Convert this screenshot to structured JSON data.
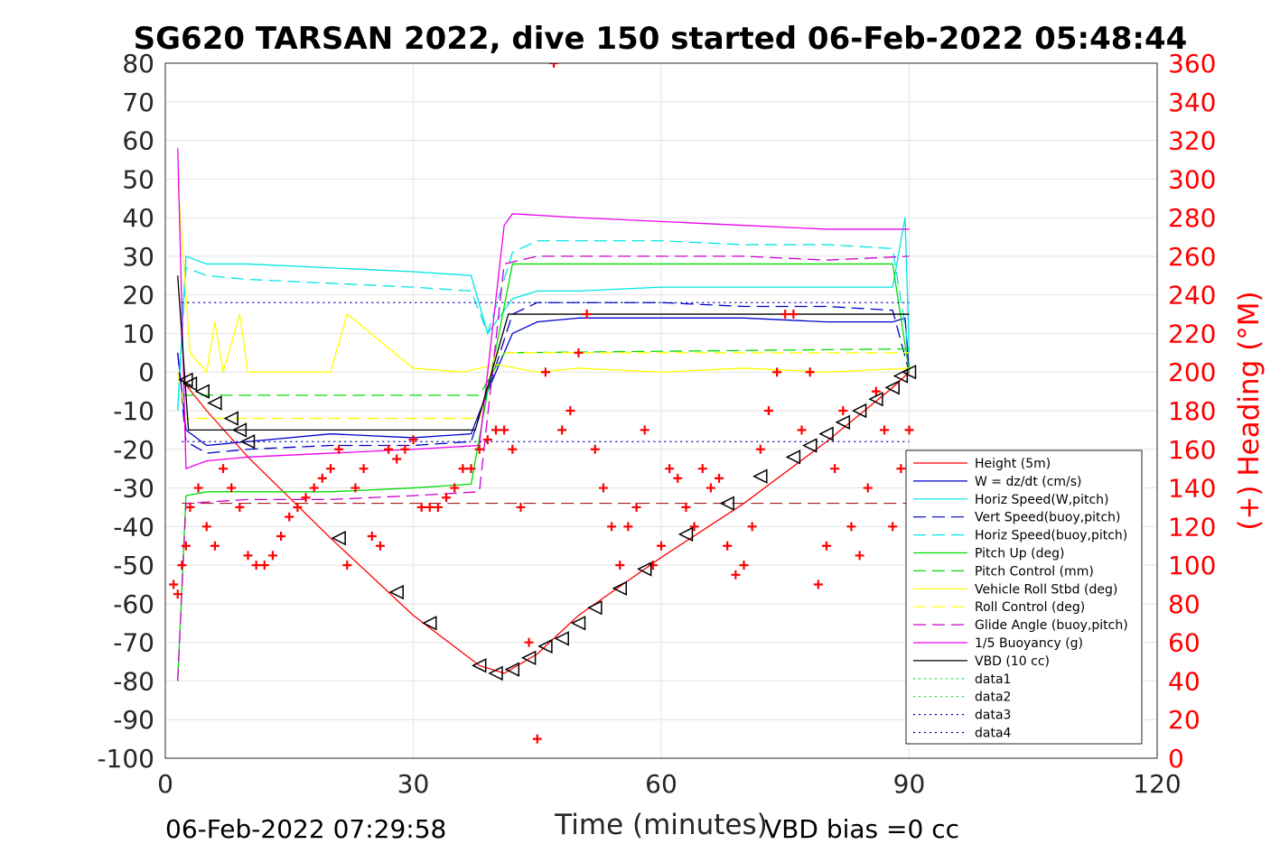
{
  "chart_data": {
    "type": "line",
    "title": "SG620 TARSAN 2022, dive 150 started 06-Feb-2022 05:48:44",
    "xlabel": "Time (minutes)",
    "ylabel_right": "(+) Heading (°M)",
    "xlim": [
      0,
      120
    ],
    "ylim": [
      -100,
      80
    ],
    "ylim_right": [
      0,
      360
    ],
    "x_ticks": [
      "0",
      "30",
      "60",
      "90",
      "120"
    ],
    "y_ticks": [
      "80",
      "70",
      "60",
      "50",
      "40",
      "30",
      "20",
      "10",
      "0",
      "-10",
      "-20",
      "-30",
      "-40",
      "-50",
      "-60",
      "-70",
      "-80",
      "-90",
      "-100"
    ],
    "y_ticks_right": [
      "360",
      "340",
      "320",
      "300",
      "280",
      "260",
      "240",
      "220",
      "200",
      "180",
      "160",
      "140",
      "120",
      "100",
      "80",
      "60",
      "40",
      "20",
      "0"
    ],
    "grid": true,
    "legend_position": "bottom-right",
    "footer_left": "06-Feb-2022 07:29:58",
    "footer_right": "VBD bias =0 cc",
    "series": [
      {
        "name": "Height (5m)",
        "color": "#ff0000",
        "style": "solid",
        "x": [
          2,
          5,
          10,
          20,
          30,
          38,
          41,
          45,
          50,
          60,
          70,
          80,
          88,
          90
        ],
        "y": [
          -2,
          -10,
          -22,
          -43,
          -63,
          -76,
          -78,
          -73,
          -63,
          -48,
          -34,
          -18,
          -4,
          0
        ]
      },
      {
        "name": "W = dz/dt (cm/s)",
        "color": "#0000cc",
        "style": "solid",
        "x": [
          1.5,
          2.5,
          5,
          10,
          20,
          30,
          37,
          39,
          42,
          45,
          50,
          60,
          70,
          80,
          88,
          89.5,
          90
        ],
        "y": [
          5,
          -15,
          -19,
          -18,
          -16,
          -17,
          -16,
          -5,
          10,
          13,
          14,
          14,
          14,
          13,
          13,
          14,
          0
        ]
      },
      {
        "name": "Horiz Speed(W,pitch)",
        "color": "#00e5e5",
        "style": "solid",
        "x": [
          1.5,
          2.5,
          5,
          10,
          20,
          30,
          37,
          39,
          42,
          45,
          50,
          60,
          70,
          80,
          88,
          89.5,
          90
        ],
        "y": [
          -10,
          30,
          28,
          28,
          27,
          26,
          25,
          10,
          19,
          21,
          21,
          22,
          22,
          22,
          22,
          40,
          5
        ]
      },
      {
        "name": "Vert Speed(buoy,pitch)",
        "color": "#0000cc",
        "style": "dashed",
        "x": [
          1.5,
          2.5,
          5,
          10,
          20,
          30,
          37,
          39,
          42,
          45,
          50,
          60,
          70,
          80,
          88,
          90
        ],
        "y": [
          5,
          -18,
          -21,
          -20,
          -19,
          -19,
          -18,
          -5,
          15,
          18,
          18,
          18,
          17,
          17,
          16,
          0
        ]
      },
      {
        "name": "Horiz Speed(buoy,pitch)",
        "color": "#00e5e5",
        "style": "dashed",
        "x": [
          1.5,
          2.5,
          5,
          10,
          20,
          30,
          37,
          39,
          42,
          45,
          50,
          60,
          70,
          80,
          88,
          90
        ],
        "y": [
          -10,
          27,
          25,
          24,
          23,
          22,
          21,
          10,
          31,
          34,
          34,
          34,
          33,
          33,
          32,
          5
        ]
      },
      {
        "name": "Pitch Up (deg)",
        "color": "#00dd00",
        "style": "solid",
        "x": [
          1.5,
          2.5,
          5,
          10,
          20,
          30,
          37,
          39,
          42,
          45,
          50,
          60,
          70,
          80,
          88,
          90
        ],
        "y": [
          -80,
          -32,
          -31,
          -31,
          -31,
          -30,
          -29,
          -5,
          28,
          28,
          28,
          28,
          28,
          28,
          28,
          0
        ]
      },
      {
        "name": "Pitch Control (mm)",
        "color": "#00dd00",
        "style": "dashed",
        "x": [
          2,
          38,
          41,
          90
        ],
        "y": [
          -6,
          -6,
          5,
          6
        ]
      },
      {
        "name": "Vehicle Roll Stbd (deg)",
        "color": "#ffff00",
        "style": "solid",
        "x": [
          1.5,
          3,
          5,
          6,
          7,
          9,
          10,
          20,
          22,
          30,
          36,
          40,
          45,
          50,
          60,
          70,
          80,
          90
        ],
        "y": [
          50,
          5,
          0,
          13,
          0,
          15,
          0,
          0,
          15,
          1,
          0,
          2,
          0,
          1,
          0,
          1,
          0,
          1
        ]
      },
      {
        "name": "Roll Control (deg)",
        "color": "#ffff00",
        "style": "dashed",
        "x": [
          1.5,
          2.5,
          10,
          20,
          30,
          38,
          40,
          45,
          50,
          60,
          70,
          80,
          90
        ],
        "y": [
          0,
          -12,
          -12,
          -12,
          -12,
          -12,
          5,
          5,
          5,
          5,
          5,
          5,
          5
        ]
      },
      {
        "name": "Glide Angle (buoy,pitch)",
        "color": "#cc00cc",
        "style": "dashed",
        "x": [
          1.5,
          2.5,
          10,
          20,
          30,
          38,
          41,
          45,
          50,
          60,
          70,
          80,
          90
        ],
        "y": [
          -80,
          -34,
          -33,
          -33,
          -32,
          -31,
          28,
          30,
          30,
          30,
          30,
          29,
          30
        ]
      },
      {
        "name": "1/5 Buoyancy (g)",
        "color": "#ee00ee",
        "style": "solid",
        "x": [
          1.5,
          2.5,
          5,
          10,
          20,
          30,
          38,
          41,
          42,
          50,
          60,
          70,
          80,
          90
        ],
        "y": [
          58,
          -25,
          -23,
          -22,
          -21,
          -20,
          -19,
          38,
          41,
          40,
          39,
          38,
          37,
          37
        ]
      },
      {
        "name": "VBD (10 cc)",
        "color": "#000000",
        "style": "solid",
        "x": [
          1.5,
          2.8,
          37.5,
          41.5,
          90
        ],
        "y": [
          25,
          -15,
          -15,
          15,
          15
        ]
      },
      {
        "name": "data1",
        "color": "#00dd00",
        "style": "dotted",
        "x": [],
        "y": []
      },
      {
        "name": "data2",
        "color": "#00dd00",
        "style": "dotted",
        "x": [],
        "y": []
      },
      {
        "name": "data3",
        "color": "#0000aa",
        "style": "dotted",
        "x": [
          2,
          90
        ],
        "y": [
          18,
          18
        ]
      },
      {
        "name": "data4",
        "color": "#0000aa",
        "style": "dotted",
        "x": [
          2,
          90
        ],
        "y": [
          -18,
          -18
        ]
      }
    ],
    "reference_lines": [
      {
        "color": "#990000",
        "style": "dashed",
        "y": -34,
        "x": [
          2,
          90
        ]
      }
    ],
    "heading": {
      "color": "#ff0000",
      "marker": "+",
      "axis": "right",
      "x": [
        1,
        1.5,
        2,
        2.5,
        3,
        4,
        5,
        6,
        7,
        8,
        9,
        10,
        11,
        12,
        13,
        14,
        15,
        16,
        17,
        18,
        19,
        20,
        21,
        22,
        23,
        24,
        25,
        26,
        27,
        28,
        29,
        30,
        31,
        32,
        33,
        34,
        35,
        36,
        37,
        38,
        39,
        40,
        41,
        42,
        43,
        44,
        45,
        46,
        47,
        48,
        49,
        50,
        51,
        52,
        53,
        54,
        55,
        56,
        57,
        58,
        59,
        60,
        61,
        62,
        63,
        64,
        65,
        66,
        67,
        68,
        69,
        70,
        71,
        72,
        73,
        74,
        75,
        76,
        77,
        78,
        79,
        80,
        81,
        82,
        83,
        84,
        85,
        86,
        87,
        88,
        89,
        90
      ],
      "y": [
        90,
        85,
        100,
        110,
        130,
        140,
        120,
        110,
        150,
        140,
        130,
        105,
        100,
        100,
        105,
        115,
        125,
        130,
        135,
        140,
        145,
        150,
        160,
        100,
        140,
        150,
        115,
        110,
        160,
        155,
        160,
        165,
        130,
        130,
        130,
        135,
        140,
        150,
        150,
        160,
        165,
        170,
        170,
        160,
        130,
        60,
        10,
        200,
        360,
        170,
        180,
        210,
        230,
        160,
        140,
        120,
        100,
        120,
        130,
        170,
        100,
        110,
        150,
        145,
        130,
        120,
        150,
        140,
        145,
        110,
        95,
        100,
        120,
        160,
        180,
        200,
        230,
        230,
        170,
        200,
        90,
        110,
        150,
        180,
        120,
        105,
        140,
        190,
        170,
        120,
        150,
        170
      ]
    },
    "markers": {
      "color": "#000000",
      "marker": "triangle",
      "x": [
        2.5,
        3,
        4.5,
        6,
        8,
        9,
        10,
        21,
        28,
        32,
        38,
        40,
        42,
        44,
        46,
        48,
        50,
        52,
        55,
        58,
        63,
        68,
        72,
        76,
        78,
        80,
        82,
        84,
        86,
        88,
        89,
        90
      ],
      "y": [
        -2,
        -3,
        -5,
        -8,
        -12,
        -15,
        -18,
        -43,
        -57,
        -65,
        -76,
        -78,
        -77,
        -74,
        -71,
        -69,
        -65,
        -61,
        -56,
        -51,
        -42,
        -34,
        -27,
        -22,
        -19,
        -16,
        -13,
        -10,
        -7,
        -4,
        -1,
        0
      ]
    }
  }
}
